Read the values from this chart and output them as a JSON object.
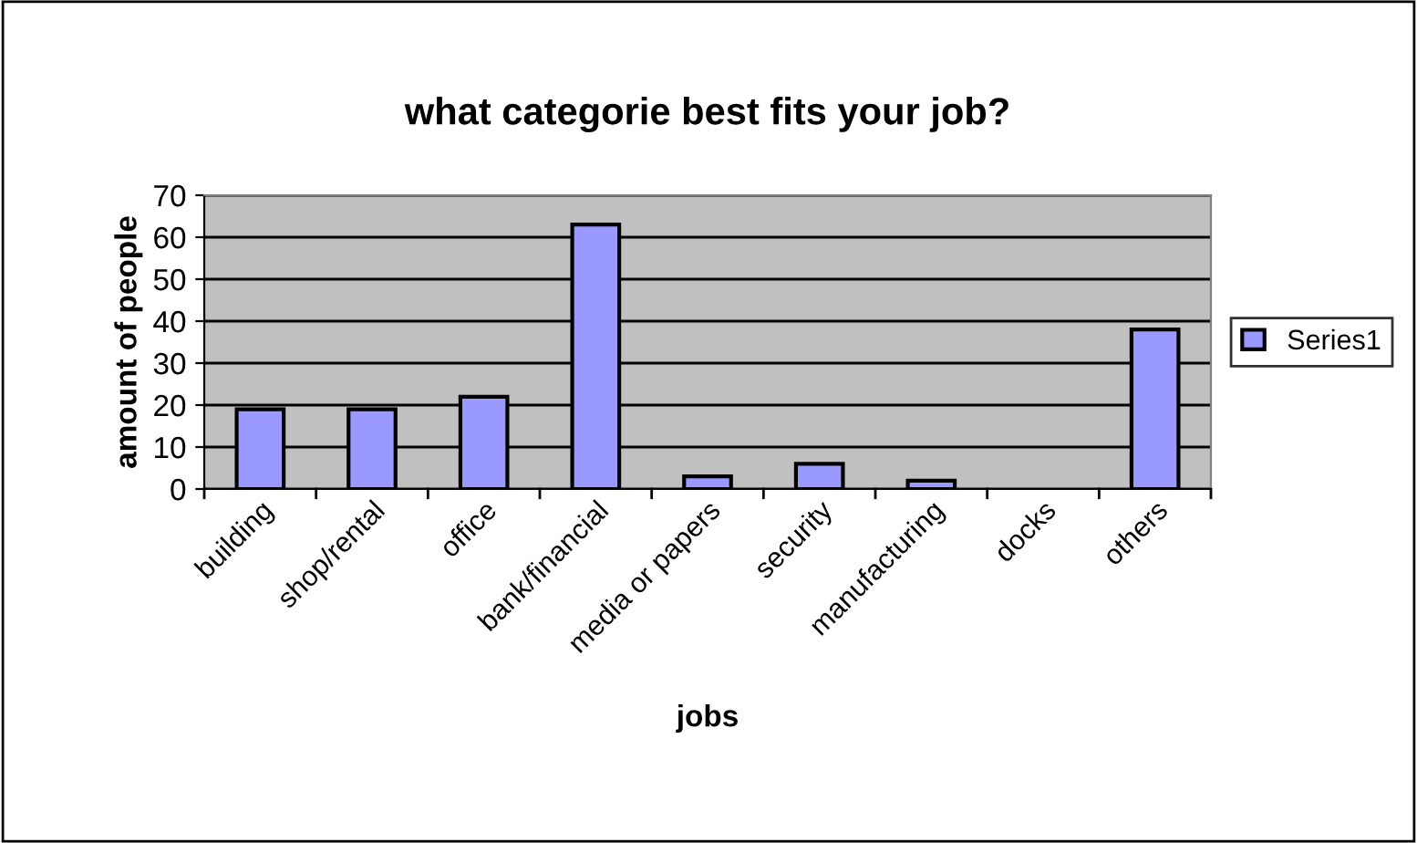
{
  "chart_data": {
    "type": "bar",
    "title": "what categorie best fits your job?",
    "xlabel": "jobs",
    "ylabel": "amount of people",
    "categories": [
      "building",
      "shop/rental",
      "office",
      "bank/financial",
      "media or papers",
      "security",
      "manufacturing",
      "docks",
      "others"
    ],
    "series": [
      {
        "name": "Series1",
        "color": "#9999ff",
        "values": [
          19,
          19,
          22,
          63,
          3,
          6,
          2,
          0,
          38
        ]
      }
    ],
    "ylim": [
      0,
      70
    ],
    "yticks": [
      0,
      10,
      20,
      30,
      40,
      50,
      60,
      70
    ],
    "grid": "y",
    "legend": "right"
  }
}
